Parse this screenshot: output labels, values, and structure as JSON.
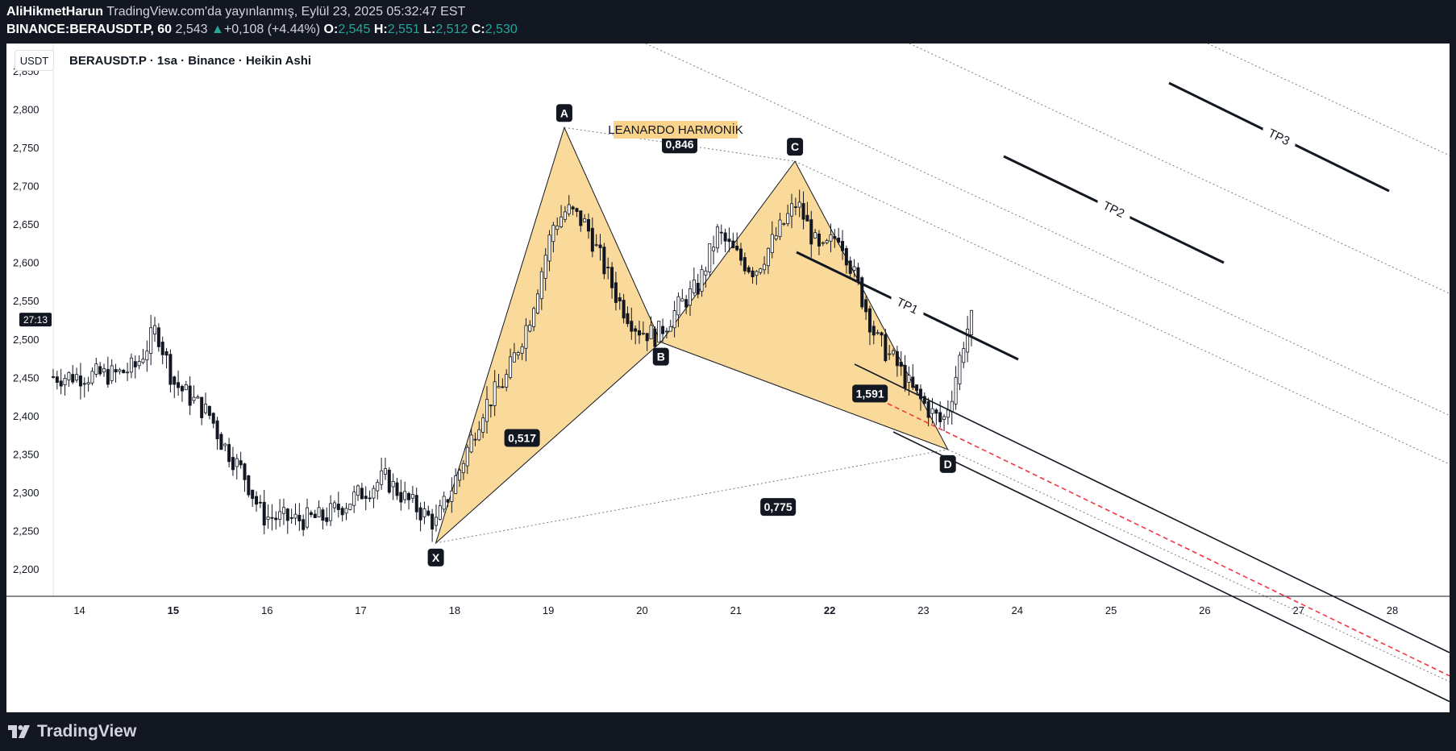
{
  "header": {
    "author": "AliHikmetHarun",
    "published": "TradingView.com'da yayınlanmış, Eylül 23, 2025 05:32:47 EST",
    "symbol": "BINANCE:BERAUSDT.P, 60",
    "last": "2,543",
    "change_arrow": "▲",
    "change": "+0,108 (+4.44%)",
    "o_label": "O:",
    "o": "2,545",
    "h_label": "H:",
    "h": "2,551",
    "l_label": "L:",
    "l": "2,512",
    "c_label": "C:",
    "c": "2,530"
  },
  "chart": {
    "currency_button": "USDT",
    "title": "BERAUSDT.P · 1sa · Binance · Heikin Ashi",
    "countdown": "27:13",
    "pattern_label": "LEANARDO HARMONİK",
    "colors": {
      "bull": "#089981",
      "bear": "#131722",
      "pattern_fill": "#f9d48a",
      "label_bg": "#f9d48a",
      "dashed": "#f23645"
    }
  },
  "footer": {
    "logo_text": "TradingView",
    "logo_icon": "tradingview-logo-icon"
  },
  "chart_data": {
    "type": "candlestick",
    "title": "BERAUSDT.P · 1sa · Binance · Heikin Ashi",
    "xlabel": "",
    "ylabel": "",
    "ylim": [
      2.18,
      2.88
    ],
    "yticks": [
      "2,850",
      "2,800",
      "2,750",
      "2,700",
      "2,650",
      "2,600",
      "2,550",
      "2,500",
      "2,450",
      "2,400",
      "2,350",
      "2,300",
      "2,250",
      "2,200"
    ],
    "ytick_values": [
      2.85,
      2.8,
      2.75,
      2.7,
      2.65,
      2.6,
      2.55,
      2.5,
      2.45,
      2.4,
      2.35,
      2.3,
      2.25,
      2.2
    ],
    "xticks": [
      "14",
      "15",
      "16",
      "17",
      "18",
      "19",
      "20",
      "21",
      "22",
      "23",
      "24",
      "25",
      "26",
      "27",
      "28"
    ],
    "bold_xticks": [
      "15",
      "22"
    ],
    "xlim": [
      13.72,
      28.61
    ],
    "harmonic_points": [
      {
        "label": "X",
        "day": 17.8,
        "price": 2.235
      },
      {
        "label": "A",
        "day": 19.17,
        "price": 2.777
      },
      {
        "label": "B",
        "day": 20.2,
        "price": 2.497
      },
      {
        "label": "C",
        "day": 21.63,
        "price": 2.733
      },
      {
        "label": "D",
        "day": 23.26,
        "price": 2.357
      }
    ],
    "ratios": [
      {
        "text": "0,846",
        "day": 20.4,
        "price": 2.755
      },
      {
        "text": "0,517",
        "day": 18.72,
        "price": 2.372
      },
      {
        "text": "1,591",
        "day": 22.43,
        "price": 2.43
      },
      {
        "text": "0,775",
        "day": 21.45,
        "price": 2.282
      }
    ],
    "targets": [
      {
        "label": "TP1",
        "day": 22.52,
        "price": 2.659
      },
      {
        "label": "TP2",
        "day": 24.79,
        "price": 2.84
      },
      {
        "label": "TP3",
        "day": 26.64,
        "price": 3.01
      }
    ],
    "pivots": [
      [
        13.72,
        2.452
      ],
      [
        14.4,
        2.455
      ],
      [
        14.6,
        2.465
      ],
      [
        14.82,
        2.515
      ],
      [
        15.0,
        2.445
      ],
      [
        15.4,
        2.4
      ],
      [
        15.5,
        2.37
      ],
      [
        15.75,
        2.325
      ],
      [
        15.95,
        2.27
      ],
      [
        16.3,
        2.265
      ],
      [
        16.6,
        2.268
      ],
      [
        17.0,
        2.3
      ],
      [
        17.25,
        2.32
      ],
      [
        17.5,
        2.29
      ],
      [
        17.8,
        2.26
      ],
      [
        18.05,
        2.33
      ],
      [
        18.3,
        2.41
      ],
      [
        18.55,
        2.45
      ],
      [
        18.8,
        2.53
      ],
      [
        19.05,
        2.65
      ],
      [
        19.2,
        2.67
      ],
      [
        19.4,
        2.65
      ],
      [
        19.75,
        2.55
      ],
      [
        19.95,
        2.515
      ],
      [
        20.15,
        2.505
      ],
      [
        20.4,
        2.545
      ],
      [
        20.6,
        2.57
      ],
      [
        20.8,
        2.64
      ],
      [
        21.0,
        2.61
      ],
      [
        21.2,
        2.59
      ],
      [
        21.45,
        2.64
      ],
      [
        21.65,
        2.68
      ],
      [
        21.9,
        2.61
      ],
      [
        22.1,
        2.64
      ],
      [
        22.3,
        2.57
      ],
      [
        22.5,
        2.5
      ],
      [
        22.7,
        2.47
      ],
      [
        22.9,
        2.43
      ],
      [
        23.05,
        2.41
      ],
      [
        23.2,
        2.39
      ],
      [
        23.3,
        2.43
      ],
      [
        23.45,
        2.51
      ],
      [
        23.55,
        2.535
      ]
    ]
  }
}
